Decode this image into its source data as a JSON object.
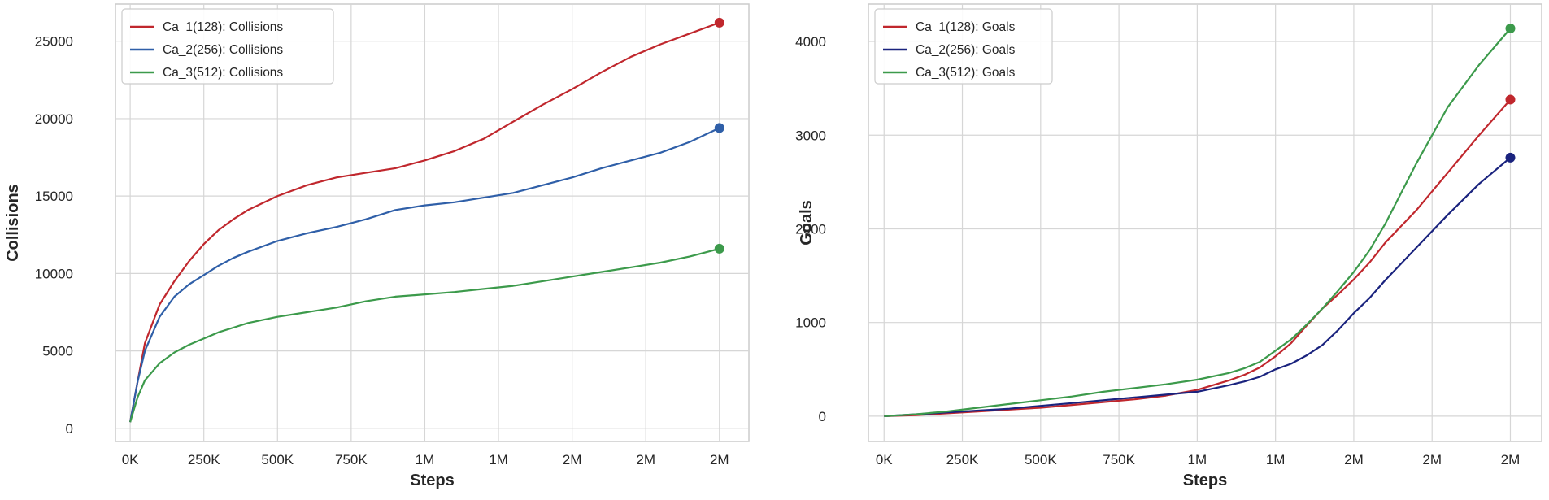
{
  "chart_data": [
    {
      "type": "line",
      "xlabel": "Steps",
      "ylabel": "Collisions",
      "x_tick_labels": [
        "0K",
        "250K",
        "500K",
        "750K",
        "1M",
        "1M",
        "2M",
        "2M",
        "2M"
      ],
      "x_ticks": [
        0,
        250000,
        500000,
        750000,
        1000000,
        1250000,
        1500000,
        1750000,
        2000000
      ],
      "xlim": [
        -50000,
        2100000
      ],
      "y_ticks": [
        0,
        5000,
        10000,
        15000,
        20000,
        25000
      ],
      "y_tick_labels": [
        "0",
        "5000",
        "10000",
        "15000",
        "20000",
        "25000"
      ],
      "ylim": [
        -850,
        27400
      ],
      "grid": true,
      "legend_position": "top-left",
      "series": [
        {
          "name": "Ca_1(128): Collisions",
          "color": "#c0272d",
          "x": [
            0,
            25000,
            50000,
            100000,
            150000,
            200000,
            250000,
            300000,
            350000,
            400000,
            500000,
            600000,
            700000,
            800000,
            900000,
            1000000,
            1100000,
            1200000,
            1300000,
            1400000,
            1500000,
            1600000,
            1700000,
            1800000,
            1900000,
            2000000
          ],
          "y": [
            400,
            3000,
            5500,
            8000,
            9500,
            10800,
            11900,
            12800,
            13500,
            14100,
            15000,
            15700,
            16200,
            16500,
            16800,
            17300,
            17900,
            18700,
            19800,
            20900,
            21900,
            23000,
            24000,
            24800,
            25500,
            26200
          ]
        },
        {
          "name": "Ca_2(256): Collisions",
          "color": "#2f5fa8",
          "x": [
            0,
            25000,
            50000,
            100000,
            150000,
            200000,
            250000,
            300000,
            350000,
            400000,
            500000,
            600000,
            700000,
            800000,
            900000,
            1000000,
            1100000,
            1200000,
            1300000,
            1400000,
            1500000,
            1600000,
            1700000,
            1800000,
            1900000,
            2000000
          ],
          "y": [
            400,
            3000,
            5000,
            7200,
            8500,
            9300,
            9900,
            10500,
            11000,
            11400,
            12100,
            12600,
            13000,
            13500,
            14100,
            14400,
            14600,
            14900,
            15200,
            15700,
            16200,
            16800,
            17300,
            17800,
            18500,
            19400
          ]
        },
        {
          "name": "Ca_3(512): Collisions",
          "color": "#3c9a4b",
          "x": [
            0,
            25000,
            50000,
            100000,
            150000,
            200000,
            250000,
            300000,
            350000,
            400000,
            500000,
            600000,
            700000,
            800000,
            900000,
            1000000,
            1100000,
            1200000,
            1300000,
            1400000,
            1500000,
            1600000,
            1700000,
            1800000,
            1900000,
            2000000
          ],
          "y": [
            400,
            2000,
            3100,
            4200,
            4900,
            5400,
            5800,
            6200,
            6500,
            6800,
            7200,
            7500,
            7800,
            8200,
            8500,
            8650,
            8800,
            9000,
            9200,
            9500,
            9800,
            10100,
            10400,
            10700,
            11100,
            11600
          ]
        }
      ]
    },
    {
      "type": "line",
      "xlabel": "Steps",
      "ylabel": "Goals",
      "x_tick_labels": [
        "0K",
        "250K",
        "500K",
        "750K",
        "1M",
        "1M",
        "2M",
        "2M",
        "2M"
      ],
      "x_ticks": [
        0,
        250000,
        500000,
        750000,
        1000000,
        1250000,
        1500000,
        1750000,
        2000000
      ],
      "xlim": [
        -50000,
        2100000
      ],
      "y_ticks": [
        0,
        1000,
        2000,
        3000,
        4000
      ],
      "y_tick_labels": [
        "0",
        "1000",
        "2000",
        "3000",
        "4000"
      ],
      "ylim": [
        -270,
        4400
      ],
      "grid": true,
      "legend_position": "top-left",
      "series": [
        {
          "name": "Ca_1(128): Goals",
          "color": "#c0272d",
          "x": [
            0,
            100000,
            200000,
            300000,
            400000,
            500000,
            600000,
            700000,
            800000,
            900000,
            1000000,
            1100000,
            1150000,
            1200000,
            1250000,
            1300000,
            1350000,
            1400000,
            1450000,
            1500000,
            1550000,
            1600000,
            1700000,
            1800000,
            1900000,
            2000000
          ],
          "y": [
            0,
            10,
            30,
            50,
            70,
            90,
            120,
            150,
            180,
            220,
            280,
            380,
            440,
            520,
            640,
            780,
            970,
            1150,
            1300,
            1460,
            1640,
            1850,
            2200,
            2600,
            3000,
            3380
          ]
        },
        {
          "name": "Ca_2(256): Goals",
          "color": "#1a237e",
          "x": [
            0,
            100000,
            200000,
            300000,
            400000,
            500000,
            600000,
            700000,
            800000,
            900000,
            1000000,
            1100000,
            1150000,
            1200000,
            1250000,
            1300000,
            1350000,
            1400000,
            1450000,
            1500000,
            1550000,
            1600000,
            1700000,
            1800000,
            1900000,
            2000000
          ],
          "y": [
            0,
            20,
            40,
            60,
            80,
            110,
            140,
            170,
            200,
            230,
            260,
            330,
            370,
            420,
            500,
            560,
            650,
            760,
            920,
            1100,
            1260,
            1450,
            1800,
            2150,
            2480,
            2760
          ]
        },
        {
          "name": "Ca_3(512): Goals",
          "color": "#3c9a4b",
          "x": [
            0,
            100000,
            200000,
            300000,
            400000,
            500000,
            600000,
            700000,
            800000,
            900000,
            1000000,
            1100000,
            1150000,
            1200000,
            1250000,
            1300000,
            1350000,
            1400000,
            1450000,
            1500000,
            1550000,
            1600000,
            1700000,
            1800000,
            1900000,
            2000000
          ],
          "y": [
            0,
            20,
            50,
            90,
            130,
            170,
            210,
            260,
            300,
            340,
            390,
            460,
            510,
            580,
            700,
            820,
            980,
            1150,
            1340,
            1540,
            1770,
            2050,
            2700,
            3300,
            3750,
            4140
          ]
        }
      ]
    }
  ]
}
